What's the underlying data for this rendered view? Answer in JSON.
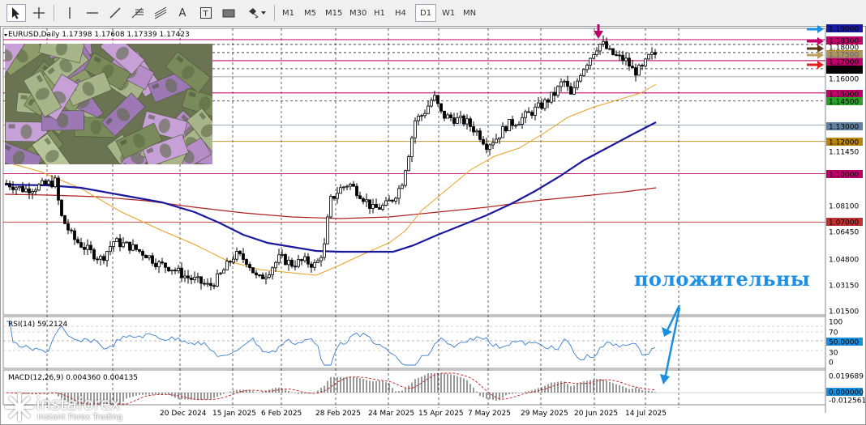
{
  "toolbar": {
    "tools": [
      {
        "name": "cursor-icon",
        "glyph": "↖"
      },
      {
        "name": "crosshair-icon",
        "glyph": "+"
      },
      {
        "name": "vertical-line-icon",
        "glyph": "|"
      },
      {
        "name": "horizontal-line-icon",
        "glyph": "—"
      },
      {
        "name": "trendline-icon",
        "glyph": "╱"
      },
      {
        "name": "fibonacci-icon",
        "glyph": "≡"
      },
      {
        "name": "text-icon",
        "glyph": "A"
      },
      {
        "name": "text-label-icon",
        "glyph": "T"
      },
      {
        "name": "rectangle-icon",
        "glyph": "▬"
      },
      {
        "name": "shapes-icon",
        "glyph": "◆"
      }
    ],
    "timeframes": [
      "M1",
      "M5",
      "M15",
      "M30",
      "H1",
      "H4",
      "D1",
      "W1",
      "MN"
    ],
    "active_timeframe": "D1"
  },
  "chart": {
    "symbol_info": "EURUSD,Daily  1.17398 1.17608 1.17339 1.17423",
    "price_labels": [
      "1.19000",
      "1.18300",
      "1.18000",
      "1.17500",
      "1.17000",
      "1.16500",
      "1.16000",
      "1.15000",
      "1.14500",
      "1.13000",
      "1.12000",
      "1.11450",
      "1.10000",
      "1.08100",
      "1.07000",
      "1.06450",
      "1.04800",
      "1.03150",
      "1.01500"
    ],
    "date_labels": [
      "20 Dec 2024",
      "15 Jan 2025",
      "6 Feb 2025",
      "28 Feb 2025",
      "24 Mar 2025",
      "15 Apr 2025",
      "7 May 2025",
      "29 May 2025",
      "20 Jun 2025",
      "14 Jul 2025"
    ],
    "annotation_text": "положительны",
    "colors": {
      "blue_ma": "#1a1aa0",
      "orange_ma": "#e8a020",
      "red_ma": "#b02020",
      "magenta_level": "#c0006a",
      "annotation": "#1e90e6"
    }
  },
  "rsi": {
    "title": "RSI(14) 59.2124",
    "levels": [
      "100",
      "70",
      "50.0000",
      "30",
      "0"
    ]
  },
  "macd": {
    "title": "MACD(12,26,9) 0.004360 0.004135",
    "levels": [
      "0.019689",
      "0.000000",
      "-0.012561"
    ]
  },
  "watermark": {
    "brand": "instaforex",
    "tagline": "Instant Forex Trading"
  }
}
